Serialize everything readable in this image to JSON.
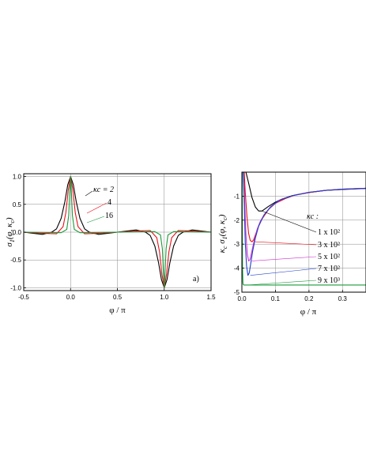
{
  "chart_data": [
    {
      "type": "line",
      "xlabel": "φ / π",
      "ylabel": "σ₁(φ, κc)",
      "xlim": [
        -0.5,
        1.5
      ],
      "ylim": [
        -1.05,
        1.05
      ],
      "x_ticks": [
        -0.5,
        0.0,
        0.5,
        1.0,
        1.5
      ],
      "x_tick_labels": [
        "-0.5",
        "0.0",
        "0.5",
        "1.0",
        "1.5"
      ],
      "y_ticks": [
        -1.0,
        -0.5,
        0.0,
        0.5,
        1.0
      ],
      "y_tick_labels": [
        "-1.0",
        "-0.5",
        "0.0",
        "0.5",
        "1.0"
      ],
      "grid": true,
      "panel_label": "a)",
      "series": [
        {
          "name": "κc = 2",
          "color": "#000000",
          "kappa": 2,
          "x": [
            -0.5,
            -0.4,
            -0.3,
            -0.2,
            -0.15,
            -0.1,
            -0.06,
            -0.03,
            0,
            0.03,
            0.06,
            0.1,
            0.15,
            0.2,
            0.3,
            0.4,
            0.5,
            0.6,
            0.7,
            0.8,
            0.85,
            0.9,
            0.94,
            0.97,
            1.0,
            1.03,
            1.06,
            1.1,
            1.15,
            1.2,
            1.3,
            1.4,
            1.5
          ],
          "y": [
            0,
            -0.02,
            -0.04,
            0,
            0.06,
            0.25,
            0.55,
            0.85,
            1.0,
            0.85,
            0.55,
            0.25,
            0.06,
            0,
            -0.04,
            -0.02,
            0,
            0.02,
            0.04,
            0,
            -0.06,
            -0.25,
            -0.55,
            -0.85,
            -1.0,
            -0.85,
            -0.55,
            -0.25,
            -0.06,
            0,
            0.04,
            0.02,
            0
          ]
        },
        {
          "name": "4",
          "color": "#e8101a",
          "kappa": 4,
          "x": [
            -0.5,
            -0.3,
            -0.15,
            -0.08,
            -0.05,
            -0.025,
            0,
            0.025,
            0.05,
            0.08,
            0.15,
            0.3,
            0.5,
            0.7,
            0.85,
            0.92,
            0.95,
            0.975,
            1.0,
            1.025,
            1.05,
            1.08,
            1.15,
            1.3,
            1.5
          ],
          "y": [
            0,
            -0.02,
            -0.03,
            0.1,
            0.35,
            0.75,
            1.0,
            0.75,
            0.35,
            0.1,
            -0.03,
            -0.02,
            0,
            0.02,
            0.03,
            -0.1,
            -0.35,
            -0.75,
            -1.0,
            -0.75,
            -0.35,
            -0.1,
            0.03,
            0.02,
            0
          ]
        },
        {
          "name": "16",
          "color": "#1a9a3a",
          "kappa": 16,
          "x": [
            -0.5,
            -0.1,
            -0.04,
            -0.02,
            -0.01,
            0,
            0.01,
            0.02,
            0.04,
            0.1,
            0.5,
            0.9,
            0.96,
            0.98,
            0.99,
            1.0,
            1.01,
            1.02,
            1.04,
            1.1,
            1.5
          ],
          "y": [
            0,
            -0.01,
            0.05,
            0.3,
            0.7,
            1.0,
            0.7,
            0.3,
            0.05,
            -0.01,
            0,
            0.01,
            -0.05,
            -0.3,
            -0.7,
            -1.0,
            -0.7,
            -0.3,
            -0.05,
            0.01,
            0
          ]
        }
      ],
      "annotations": [
        {
          "text": "κc = 2"
        },
        {
          "text": "4"
        },
        {
          "text": "16"
        }
      ]
    },
    {
      "type": "line",
      "xlabel": "φ / π",
      "ylabel": "κc σ₁(φ, κc)",
      "xlim": [
        0.0,
        0.37
      ],
      "ylim": [
        -5.0,
        0.0
      ],
      "x_ticks": [
        0.0,
        0.1,
        0.2,
        0.3
      ],
      "x_tick_labels": [
        "0.0",
        "0.1",
        "0.2",
        "0.3"
      ],
      "y_ticks": [
        -5,
        -4,
        -3,
        -2,
        -1
      ],
      "y_tick_labels": [
        "-5",
        "-4",
        "-3",
        "-2",
        "-1"
      ],
      "grid": true,
      "legend_title": "κc :",
      "series": [
        {
          "name": "1 x 10²",
          "color": "#000000",
          "x": [
            0.012,
            0.02,
            0.03,
            0.04,
            0.05,
            0.06,
            0.07,
            0.08,
            0.1,
            0.12,
            0.15,
            0.2,
            0.25,
            0.3,
            0.37
          ],
          "y": [
            0.0,
            -0.45,
            -1.05,
            -1.45,
            -1.62,
            -1.62,
            -1.52,
            -1.42,
            -1.25,
            -1.12,
            -0.98,
            -0.85,
            -0.76,
            -0.72,
            -0.68
          ]
        },
        {
          "name": "3 x 10²",
          "color": "#e8101a",
          "x": [
            0.007,
            0.01,
            0.015,
            0.02,
            0.025,
            0.03,
            0.035,
            0.04,
            0.05,
            0.06,
            0.08,
            0.1,
            0.13,
            0.16,
            0.2,
            0.25,
            0.3,
            0.37
          ],
          "y": [
            0.0,
            -0.8,
            -1.85,
            -2.55,
            -2.85,
            -2.9,
            -2.82,
            -2.62,
            -2.25,
            -1.95,
            -1.55,
            -1.3,
            -1.1,
            -0.95,
            -0.85,
            -0.76,
            -0.71,
            -0.67
          ]
        },
        {
          "name": "5 x 10²",
          "color": "#d030d0",
          "x": [
            0.005,
            0.008,
            0.012,
            0.016,
            0.02,
            0.024,
            0.028,
            0.035,
            0.045,
            0.055,
            0.07,
            0.09,
            0.12,
            0.16,
            0.2,
            0.25,
            0.3,
            0.37
          ],
          "y": [
            0.0,
            -1.1,
            -2.6,
            -3.4,
            -3.7,
            -3.65,
            -3.4,
            -2.95,
            -2.4,
            -2.05,
            -1.7,
            -1.4,
            -1.12,
            -0.95,
            -0.84,
            -0.76,
            -0.71,
            -0.67
          ]
        },
        {
          "name": "7 x 10²",
          "color": "#2040c8",
          "x": [
            0.004,
            0.007,
            0.01,
            0.014,
            0.018,
            0.022,
            0.026,
            0.032,
            0.04,
            0.05,
            0.065,
            0.085,
            0.11,
            0.15,
            0.2,
            0.25,
            0.3,
            0.37
          ],
          "y": [
            0.0,
            -1.3,
            -2.9,
            -3.9,
            -4.3,
            -4.2,
            -3.85,
            -3.3,
            -2.75,
            -2.25,
            -1.8,
            -1.45,
            -1.18,
            -0.98,
            -0.84,
            -0.76,
            -0.71,
            -0.67
          ]
        },
        {
          "name": "9 x 10³",
          "color": "#1a9a3a",
          "x": [
            0.001,
            0.0015,
            0.002,
            0.003,
            0.004,
            0.006,
            0.01,
            0.02,
            0.05,
            0.1,
            0.2,
            0.37
          ],
          "y": [
            0.0,
            -2.5,
            -4.0,
            -4.6,
            -4.68,
            -4.7,
            -4.7,
            -4.7,
            -4.7,
            -4.7,
            -4.7,
            -4.7
          ]
        }
      ]
    }
  ]
}
